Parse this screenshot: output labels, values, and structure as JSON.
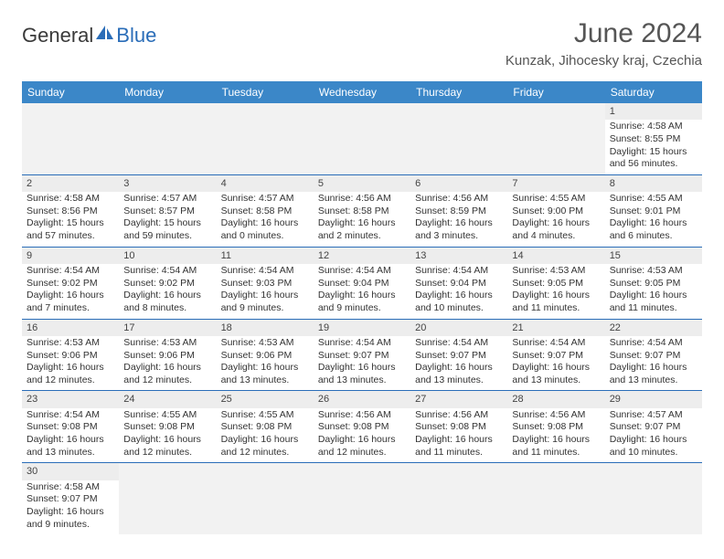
{
  "logo": {
    "general": "General",
    "blue": "Blue"
  },
  "title": "June 2024",
  "location": "Kunzak, Jihocesky kraj, Czechia",
  "colors": {
    "header_bg": "#3b87c8",
    "header_fg": "#ffffff",
    "border": "#2a6db8",
    "empty_bg": "#f2f2f2",
    "daynum_bg": "#ededed",
    "text": "#333333",
    "logo_blue": "#2a6db8",
    "logo_gray": "#3a3a3a"
  },
  "day_headers": [
    "Sunday",
    "Monday",
    "Tuesday",
    "Wednesday",
    "Thursday",
    "Friday",
    "Saturday"
  ],
  "weeks": [
    [
      null,
      null,
      null,
      null,
      null,
      null,
      {
        "n": "1",
        "sr": "Sunrise: 4:58 AM",
        "ss": "Sunset: 8:55 PM",
        "dl": "Daylight: 15 hours and 56 minutes."
      }
    ],
    [
      {
        "n": "2",
        "sr": "Sunrise: 4:58 AM",
        "ss": "Sunset: 8:56 PM",
        "dl": "Daylight: 15 hours and 57 minutes."
      },
      {
        "n": "3",
        "sr": "Sunrise: 4:57 AM",
        "ss": "Sunset: 8:57 PM",
        "dl": "Daylight: 15 hours and 59 minutes."
      },
      {
        "n": "4",
        "sr": "Sunrise: 4:57 AM",
        "ss": "Sunset: 8:58 PM",
        "dl": "Daylight: 16 hours and 0 minutes."
      },
      {
        "n": "5",
        "sr": "Sunrise: 4:56 AM",
        "ss": "Sunset: 8:58 PM",
        "dl": "Daylight: 16 hours and 2 minutes."
      },
      {
        "n": "6",
        "sr": "Sunrise: 4:56 AM",
        "ss": "Sunset: 8:59 PM",
        "dl": "Daylight: 16 hours and 3 minutes."
      },
      {
        "n": "7",
        "sr": "Sunrise: 4:55 AM",
        "ss": "Sunset: 9:00 PM",
        "dl": "Daylight: 16 hours and 4 minutes."
      },
      {
        "n": "8",
        "sr": "Sunrise: 4:55 AM",
        "ss": "Sunset: 9:01 PM",
        "dl": "Daylight: 16 hours and 6 minutes."
      }
    ],
    [
      {
        "n": "9",
        "sr": "Sunrise: 4:54 AM",
        "ss": "Sunset: 9:02 PM",
        "dl": "Daylight: 16 hours and 7 minutes."
      },
      {
        "n": "10",
        "sr": "Sunrise: 4:54 AM",
        "ss": "Sunset: 9:02 PM",
        "dl": "Daylight: 16 hours and 8 minutes."
      },
      {
        "n": "11",
        "sr": "Sunrise: 4:54 AM",
        "ss": "Sunset: 9:03 PM",
        "dl": "Daylight: 16 hours and 9 minutes."
      },
      {
        "n": "12",
        "sr": "Sunrise: 4:54 AM",
        "ss": "Sunset: 9:04 PM",
        "dl": "Daylight: 16 hours and 9 minutes."
      },
      {
        "n": "13",
        "sr": "Sunrise: 4:54 AM",
        "ss": "Sunset: 9:04 PM",
        "dl": "Daylight: 16 hours and 10 minutes."
      },
      {
        "n": "14",
        "sr": "Sunrise: 4:53 AM",
        "ss": "Sunset: 9:05 PM",
        "dl": "Daylight: 16 hours and 11 minutes."
      },
      {
        "n": "15",
        "sr": "Sunrise: 4:53 AM",
        "ss": "Sunset: 9:05 PM",
        "dl": "Daylight: 16 hours and 11 minutes."
      }
    ],
    [
      {
        "n": "16",
        "sr": "Sunrise: 4:53 AM",
        "ss": "Sunset: 9:06 PM",
        "dl": "Daylight: 16 hours and 12 minutes."
      },
      {
        "n": "17",
        "sr": "Sunrise: 4:53 AM",
        "ss": "Sunset: 9:06 PM",
        "dl": "Daylight: 16 hours and 12 minutes."
      },
      {
        "n": "18",
        "sr": "Sunrise: 4:53 AM",
        "ss": "Sunset: 9:06 PM",
        "dl": "Daylight: 16 hours and 13 minutes."
      },
      {
        "n": "19",
        "sr": "Sunrise: 4:54 AM",
        "ss": "Sunset: 9:07 PM",
        "dl": "Daylight: 16 hours and 13 minutes."
      },
      {
        "n": "20",
        "sr": "Sunrise: 4:54 AM",
        "ss": "Sunset: 9:07 PM",
        "dl": "Daylight: 16 hours and 13 minutes."
      },
      {
        "n": "21",
        "sr": "Sunrise: 4:54 AM",
        "ss": "Sunset: 9:07 PM",
        "dl": "Daylight: 16 hours and 13 minutes."
      },
      {
        "n": "22",
        "sr": "Sunrise: 4:54 AM",
        "ss": "Sunset: 9:07 PM",
        "dl": "Daylight: 16 hours and 13 minutes."
      }
    ],
    [
      {
        "n": "23",
        "sr": "Sunrise: 4:54 AM",
        "ss": "Sunset: 9:08 PM",
        "dl": "Daylight: 16 hours and 13 minutes."
      },
      {
        "n": "24",
        "sr": "Sunrise: 4:55 AM",
        "ss": "Sunset: 9:08 PM",
        "dl": "Daylight: 16 hours and 12 minutes."
      },
      {
        "n": "25",
        "sr": "Sunrise: 4:55 AM",
        "ss": "Sunset: 9:08 PM",
        "dl": "Daylight: 16 hours and 12 minutes."
      },
      {
        "n": "26",
        "sr": "Sunrise: 4:56 AM",
        "ss": "Sunset: 9:08 PM",
        "dl": "Daylight: 16 hours and 12 minutes."
      },
      {
        "n": "27",
        "sr": "Sunrise: 4:56 AM",
        "ss": "Sunset: 9:08 PM",
        "dl": "Daylight: 16 hours and 11 minutes."
      },
      {
        "n": "28",
        "sr": "Sunrise: 4:56 AM",
        "ss": "Sunset: 9:08 PM",
        "dl": "Daylight: 16 hours and 11 minutes."
      },
      {
        "n": "29",
        "sr": "Sunrise: 4:57 AM",
        "ss": "Sunset: 9:07 PM",
        "dl": "Daylight: 16 hours and 10 minutes."
      }
    ],
    [
      {
        "n": "30",
        "sr": "Sunrise: 4:58 AM",
        "ss": "Sunset: 9:07 PM",
        "dl": "Daylight: 16 hours and 9 minutes."
      },
      null,
      null,
      null,
      null,
      null,
      null
    ]
  ]
}
